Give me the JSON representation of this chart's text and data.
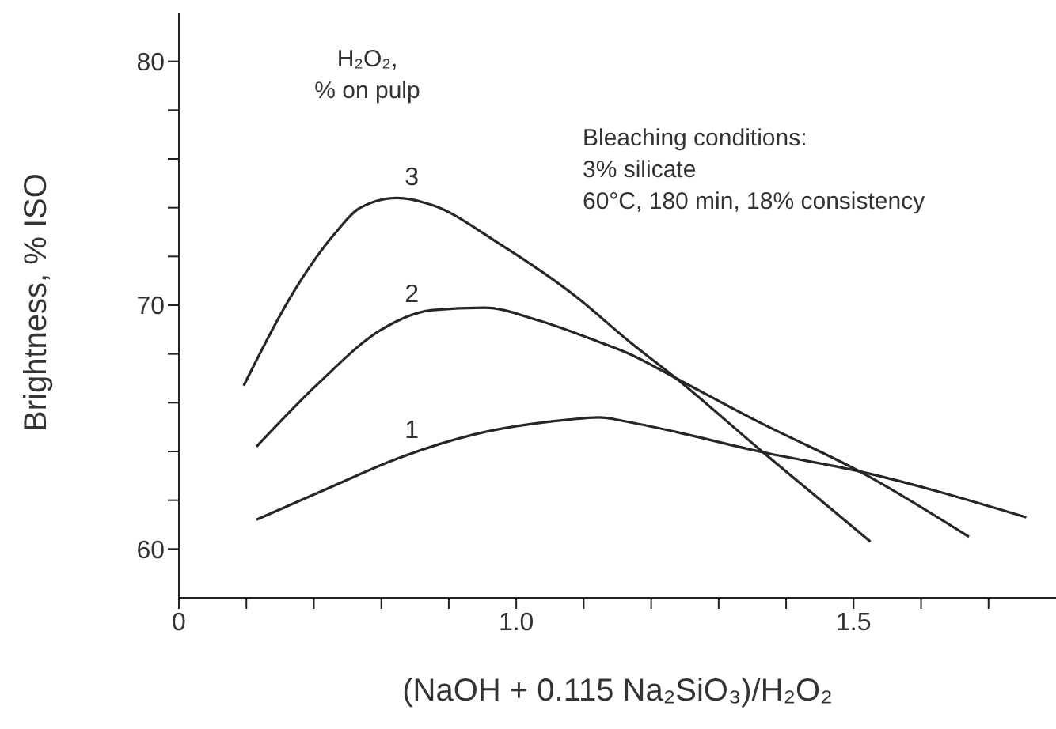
{
  "chart_data": {
    "type": "line",
    "xlabel": "(NaOH + 0.115 Na₂SiO₃)/H₂O₂",
    "ylabel": "Brightness, % ISO",
    "xlim": [
      0.5,
      1.8
    ],
    "xticks": [
      {
        "value": 0.5,
        "label": "0"
      },
      {
        "value": 0.6,
        "label": null
      },
      {
        "value": 0.7,
        "label": null
      },
      {
        "value": 0.8,
        "label": null
      },
      {
        "value": 0.9,
        "label": null
      },
      {
        "value": 1.0,
        "label": "1.0"
      },
      {
        "value": 1.1,
        "label": null
      },
      {
        "value": 1.2,
        "label": null
      },
      {
        "value": 1.3,
        "label": null
      },
      {
        "value": 1.4,
        "label": null
      },
      {
        "value": 1.5,
        "label": "1.5"
      },
      {
        "value": 1.6,
        "label": null
      },
      {
        "value": 1.7,
        "label": null
      }
    ],
    "ylim": [
      58,
      82
    ],
    "yticks": [
      60,
      {
        "value": 62,
        "label": null
      },
      {
        "value": 64,
        "label": null
      },
      {
        "value": 66,
        "label": null
      },
      {
        "value": 68,
        "label": null
      },
      70,
      {
        "value": 72,
        "label": null
      },
      {
        "value": 74,
        "label": null
      },
      {
        "value": 76,
        "label": null
      },
      {
        "value": 78,
        "label": null
      },
      80
    ],
    "grid": false,
    "legend": false,
    "marker": "none",
    "line_style": "solid",
    "series": [
      {
        "name": "1",
        "color": "#262626",
        "x": [
          0.615,
          0.73,
          0.823,
          0.938,
          1.076,
          1.122,
          1.168,
          1.237,
          1.36,
          1.506,
          1.756
        ],
        "values": [
          61.2,
          62.6,
          63.7,
          64.7,
          65.3,
          65.4,
          65.2,
          64.8,
          64.0,
          63.2,
          61.3
        ]
      },
      {
        "name": "2",
        "color": "#262626",
        "x": [
          0.615,
          0.707,
          0.8,
          0.876,
          0.953,
          1.03,
          1.122,
          1.168,
          1.237,
          1.353,
          1.521,
          1.671
        ],
        "values": [
          64.2,
          66.8,
          69.0,
          69.8,
          69.9,
          69.4,
          68.5,
          68.0,
          67.0,
          65.3,
          63.0,
          60.5
        ]
      },
      {
        "name": "3",
        "color": "#262626",
        "x": [
          0.596,
          0.669,
          0.73,
          0.769,
          0.823,
          0.876,
          0.976,
          1.091,
          1.168,
          1.237,
          1.36,
          1.525
        ],
        "values": [
          66.7,
          70.5,
          72.9,
          74.0,
          74.4,
          74.1,
          72.5,
          70.3,
          68.5,
          67.0,
          64.1,
          60.3
        ]
      }
    ],
    "annotations": [
      "H₂O₂,\n% on pulp",
      "Bleaching conditions:\n3% silicate\n60°C, 180 min, 18% consistency"
    ]
  }
}
